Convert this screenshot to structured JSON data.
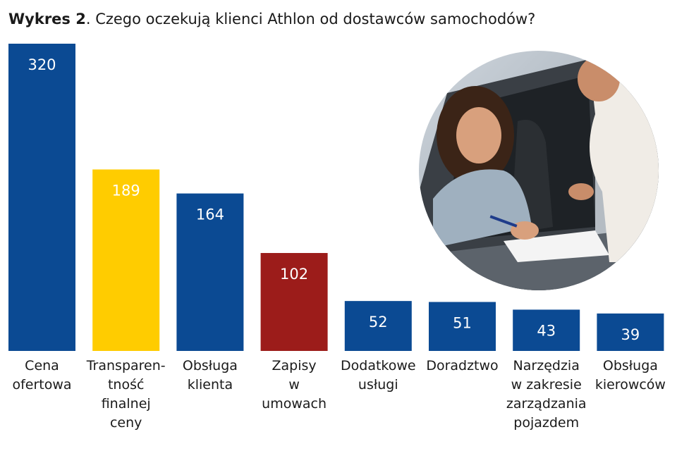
{
  "title": {
    "lead": "Wykres 2",
    "text": ".  Czego oczekują klienci Athlon od dostawców samochodów?"
  },
  "colors": {
    "navy": "#0b4a93",
    "yellow": "#ffcc00",
    "red": "#9c1c1a"
  },
  "chart_data": {
    "type": "bar",
    "title": "Wykres 2.  Czego oczekują klienci Athlon od dostawców samochodów?",
    "categories": [
      [
        "Cena",
        "ofertowa"
      ],
      [
        "Transparen-",
        "tność",
        "finalnej",
        "ceny"
      ],
      [
        "Obsługa",
        "klienta"
      ],
      [
        "Zapisy",
        "w",
        "umowach"
      ],
      [
        "Dodatkowe",
        "usługi"
      ],
      [
        "Doradztwo"
      ],
      [
        "Narzędzia",
        "w zakresie",
        "zarządzania",
        "pojazdem"
      ],
      [
        "Obsługa",
        "kierowców"
      ]
    ],
    "values": [
      320,
      189,
      164,
      102,
      52,
      51,
      43,
      39
    ],
    "value_labels": [
      "320",
      "189",
      "164",
      "102",
      "52",
      "51",
      "43",
      "39"
    ],
    "bar_colors": [
      "navy",
      "yellow",
      "navy",
      "red",
      "navy",
      "navy",
      "navy",
      "navy"
    ],
    "ylim": [
      0,
      320
    ],
    "grid": false,
    "legend": "none"
  },
  "photo": {
    "icon": "car-dealer-photo"
  }
}
